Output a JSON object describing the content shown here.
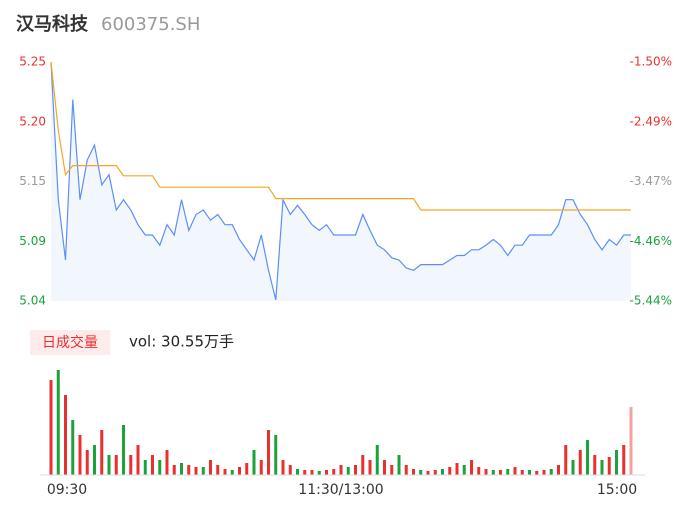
{
  "chart_data": [
    {
      "type": "line",
      "title": "汉马科技",
      "subtitle": "600375.SH",
      "x": [
        0,
        3,
        6,
        9,
        12,
        15,
        18,
        21,
        24,
        27,
        30,
        33,
        36,
        39,
        42,
        45,
        48,
        51,
        54,
        57,
        60,
        63,
        66,
        69,
        72,
        75,
        78,
        81,
        84,
        87,
        90,
        93,
        96,
        99,
        102,
        105,
        108,
        111,
        114,
        117,
        120,
        123,
        126,
        129,
        132,
        135,
        138,
        141,
        144,
        147,
        150,
        153,
        156,
        159,
        162,
        165,
        168,
        171,
        174,
        177,
        180,
        183,
        186,
        189,
        192,
        195,
        198,
        201,
        204,
        207,
        210,
        213,
        216,
        219,
        222,
        225,
        228,
        231,
        234,
        237,
        240
      ],
      "xlim": [
        0,
        240
      ],
      "ylim": [
        5.04,
        5.25
      ],
      "yticks": [
        {
          "value": 5.25,
          "label": "5.25"
        },
        {
          "value": 5.1975,
          "label": "5.20"
        },
        {
          "value": 5.145,
          "label": "5.15"
        },
        {
          "value": 5.0925,
          "label": "5.09"
        },
        {
          "value": 5.04,
          "label": "5.04"
        }
      ],
      "y2lim": [
        -5.44,
        -1.5
      ],
      "y2ticks": [
        {
          "value": -1.5,
          "label": "-1.50%"
        },
        {
          "value": -2.485,
          "label": "-2.49%"
        },
        {
          "value": -3.47,
          "label": "-3.47%"
        },
        {
          "value": -4.455,
          "label": "-4.46%"
        },
        {
          "value": -5.44,
          "label": "-5.44%"
        }
      ],
      "tick_colors": [
        "#e8312f",
        "#e8312f",
        "#999999",
        "#1aa33a",
        "#1aa33a"
      ],
      "grid": false,
      "series": [
        {
          "color": "#5b8ff9",
          "fill": "#f2f6fd",
          "values": [
            5.25,
            5.129,
            5.076,
            5.217,
            5.129,
            5.164,
            5.177,
            5.142,
            5.151,
            5.12,
            5.129,
            5.12,
            5.107,
            5.098,
            5.098,
            5.089,
            5.107,
            5.098,
            5.129,
            5.102,
            5.116,
            5.12,
            5.111,
            5.116,
            5.107,
            5.107,
            5.094,
            5.085,
            5.076,
            5.098,
            5.067,
            5.041,
            5.129,
            5.116,
            5.124,
            5.116,
            5.107,
            5.102,
            5.107,
            5.098,
            5.098,
            5.098,
            5.098,
            5.116,
            5.102,
            5.089,
            5.085,
            5.078,
            5.076,
            5.069,
            5.067,
            5.072,
            5.072,
            5.072,
            5.072,
            5.076,
            5.08,
            5.08,
            5.085,
            5.085,
            5.089,
            5.094,
            5.089,
            5.08,
            5.089,
            5.089,
            5.098,
            5.098,
            5.098,
            5.098,
            5.107,
            5.129,
            5.129,
            5.116,
            5.107,
            5.094,
            5.085,
            5.094,
            5.089,
            5.098,
            5.098
          ]
        },
        {
          "color": "#f5a623",
          "values": [
            5.25,
            5.19,
            5.151,
            5.159,
            5.159,
            5.159,
            5.159,
            5.159,
            5.159,
            5.159,
            5.15,
            5.15,
            5.15,
            5.15,
            5.15,
            5.14,
            5.14,
            5.14,
            5.14,
            5.14,
            5.14,
            5.14,
            5.14,
            5.14,
            5.14,
            5.14,
            5.14,
            5.14,
            5.14,
            5.14,
            5.14,
            5.13,
            5.13,
            5.13,
            5.13,
            5.13,
            5.13,
            5.13,
            5.13,
            5.13,
            5.13,
            5.13,
            5.13,
            5.13,
            5.13,
            5.13,
            5.13,
            5.13,
            5.13,
            5.13,
            5.13,
            5.12,
            5.12,
            5.12,
            5.12,
            5.12,
            5.12,
            5.12,
            5.12,
            5.12,
            5.12,
            5.12,
            5.12,
            5.12,
            5.12,
            5.12,
            5.12,
            5.12,
            5.12,
            5.12,
            5.12,
            5.12,
            5.12,
            5.12,
            5.12,
            5.12,
            5.12,
            5.12,
            5.12,
            5.12,
            5.12
          ]
        }
      ]
    },
    {
      "type": "bar",
      "x": [
        0,
        3,
        6,
        9,
        12,
        15,
        18,
        21,
        24,
        27,
        30,
        33,
        36,
        39,
        42,
        45,
        48,
        51,
        54,
        57,
        60,
        63,
        66,
        69,
        72,
        75,
        78,
        81,
        84,
        87,
        90,
        93,
        96,
        99,
        102,
        105,
        108,
        111,
        114,
        117,
        120,
        123,
        126,
        129,
        132,
        135,
        138,
        141,
        144,
        147,
        150,
        153,
        156,
        159,
        162,
        165,
        168,
        171,
        174,
        177,
        180,
        183,
        186,
        189,
        192,
        195,
        198,
        201,
        204,
        207,
        210,
        213,
        216,
        219,
        222,
        225,
        228,
        231,
        234,
        237,
        240
      ],
      "xlim": [
        0,
        240
      ],
      "xticks": [
        {
          "value": 0,
          "label": "09:30"
        },
        {
          "value": 120,
          "label": "11:30/13:00"
        },
        {
          "value": 240,
          "label": "15:00"
        }
      ],
      "ylim": [
        0,
        7700
      ],
      "annotation": "vol: 30.55万手",
      "series": [
        {
          "name": "日成交量",
          "values": [
            6650,
            7350,
            5600,
            3850,
            2800,
            1750,
            2100,
            3150,
            1400,
            1400,
            3500,
            1400,
            2100,
            1050,
            1400,
            1050,
            1750,
            700,
            840,
            700,
            560,
            560,
            1050,
            700,
            420,
            350,
            560,
            840,
            1750,
            1050,
            3150,
            2800,
            1050,
            700,
            420,
            350,
            350,
            280,
            350,
            420,
            700,
            560,
            700,
            1400,
            1050,
            2100,
            1050,
            700,
            1400,
            700,
            420,
            350,
            280,
            350,
            420,
            560,
            840,
            700,
            1050,
            560,
            420,
            350,
            350,
            420,
            560,
            350,
            350,
            280,
            350,
            420,
            700,
            2100,
            1050,
            1750,
            2450,
            1400,
            1050,
            1260,
            1750,
            2100,
            4760
          ],
          "colors": [
            "#e8312f",
            "#1aa33a",
            "#e8312f",
            "#1aa33a",
            "#e8312f",
            "#e8312f",
            "#1aa33a",
            "#e8312f",
            "#1aa33a",
            "#e8312f",
            "#1aa33a",
            "#e8312f",
            "#e8312f",
            "#1aa33a",
            "#e8312f",
            "#1aa33a",
            "#e8312f",
            "#e8312f",
            "#1aa33a",
            "#e8312f",
            "#e8312f",
            "#1aa33a",
            "#e8312f",
            "#e8312f",
            "#e8312f",
            "#1aa33a",
            "#e8312f",
            "#e8312f",
            "#1aa33a",
            "#e8312f",
            "#e8312f",
            "#1aa33a",
            "#e8312f",
            "#e8312f",
            "#1aa33a",
            "#e8312f",
            "#e8312f",
            "#1aa33a",
            "#e8312f",
            "#e8312f",
            "#e8312f",
            "#1aa33a",
            "#e8312f",
            "#e8312f",
            "#e8312f",
            "#1aa33a",
            "#e8312f",
            "#e8312f",
            "#1aa33a",
            "#e8312f",
            "#e8312f",
            "#1aa33a",
            "#e8312f",
            "#e8312f",
            "#1aa33a",
            "#e8312f",
            "#e8312f",
            "#1aa33a",
            "#e8312f",
            "#e8312f",
            "#e8312f",
            "#1aa33a",
            "#e8312f",
            "#1aa33a",
            "#e8312f",
            "#e8312f",
            "#1aa33a",
            "#e8312f",
            "#e8312f",
            "#1aa33a",
            "#e8312f",
            "#e8312f",
            "#1aa33a",
            "#e8312f",
            "#1aa33a",
            "#e8312f",
            "#1aa33a",
            "#e8312f",
            "#1aa33a",
            "#e8312f",
            "#f4a0a0"
          ]
        }
      ]
    }
  ]
}
